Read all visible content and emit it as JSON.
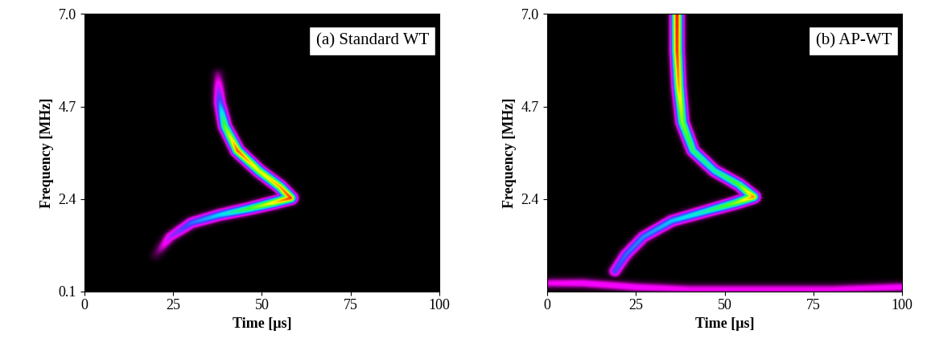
{
  "chart_data": [
    {
      "type": "heatmap",
      "title": "(a) Standard WT",
      "x_label": "Time [µs]",
      "y_label": "Frequency [MHz]",
      "xlim": [
        0,
        100
      ],
      "xticks": [
        0,
        25,
        50,
        75,
        100
      ],
      "ylim": [
        0.1,
        7.0
      ],
      "yticks": [
        0.1,
        2.4,
        4.7,
        7.0
      ],
      "magnitude_range": [
        0,
        1
      ],
      "ridges": [
        {
          "time": [
            20,
            24,
            30,
            38,
            46,
            53,
            58,
            55,
            49,
            43,
            39.5,
            38,
            37.5
          ],
          "frequency": [
            1.0,
            1.45,
            1.8,
            2.0,
            2.15,
            2.3,
            2.42,
            2.7,
            3.1,
            3.6,
            4.2,
            4.8,
            5.5
          ],
          "magnitude": [
            0.08,
            0.28,
            0.42,
            0.52,
            0.68,
            0.85,
            0.97,
            0.9,
            0.82,
            0.95,
            0.72,
            0.42,
            0.12
          ]
        }
      ]
    },
    {
      "type": "heatmap",
      "title": "(b) AP-WT",
      "x_label": "Time [µs]",
      "y_label": "Frequency [MHz]",
      "xlim": [
        0,
        100
      ],
      "xticks": [
        0,
        25,
        50,
        75,
        100
      ],
      "ylim": [
        0.1,
        7.0
      ],
      "yticks": [
        2.4,
        4.7,
        7.0
      ],
      "magnitude_range": [
        0,
        1
      ],
      "ridges": [
        {
          "time": [
            19,
            22,
            27,
            35,
            45,
            53,
            58,
            54,
            47,
            41,
            38,
            37,
            36.5,
            36.5
          ],
          "frequency": [
            0.6,
            1.0,
            1.45,
            1.85,
            2.1,
            2.3,
            2.45,
            2.75,
            3.1,
            3.6,
            4.3,
            5.2,
            6.1,
            7.0
          ],
          "magnitude": [
            0.38,
            0.42,
            0.45,
            0.5,
            0.6,
            0.75,
            0.92,
            0.7,
            0.6,
            0.65,
            0.75,
            0.9,
            0.98,
            1.0
          ]
        },
        {
          "time": [
            0,
            10,
            25,
            40,
            60,
            80,
            100
          ],
          "frequency": [
            0.3,
            0.3,
            0.2,
            0.15,
            0.15,
            0.15,
            0.2
          ],
          "magnitude": [
            0.2,
            0.22,
            0.22,
            0.2,
            0.2,
            0.2,
            0.22
          ]
        }
      ]
    }
  ]
}
